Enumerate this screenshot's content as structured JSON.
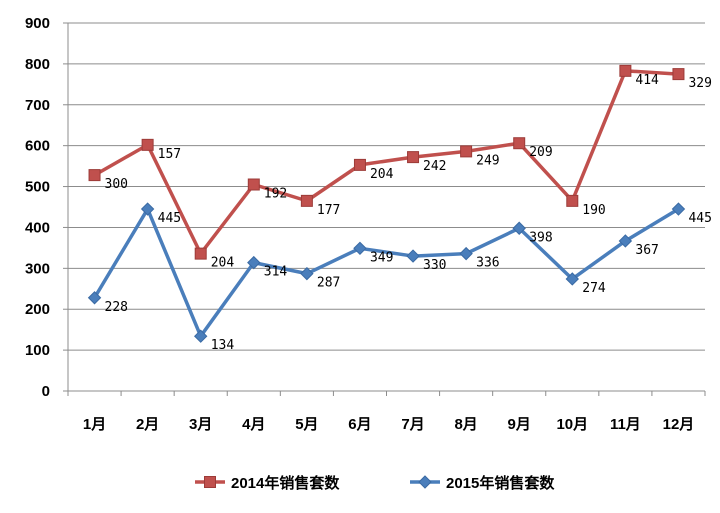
{
  "chart_data": {
    "type": "line",
    "categories": [
      "1月",
      "2月",
      "3月",
      "4月",
      "5月",
      "6月",
      "7月",
      "8月",
      "9月",
      "10月",
      "11月",
      "12月"
    ],
    "ylim": [
      0,
      900
    ],
    "yticks": [
      0,
      100,
      200,
      300,
      400,
      500,
      600,
      700,
      800,
      900
    ],
    "grid": true,
    "legend_position": "bottom",
    "series": [
      {
        "name": "2014年销售套数",
        "color": "#c0504d",
        "marker": "square",
        "values": [
          528,
          602,
          336,
          505,
          465,
          553,
          572,
          586,
          606,
          465,
          783,
          775
        ],
        "labels": [
          "300",
          "157",
          "204",
          "192",
          "177",
          "204",
          "242",
          "249",
          "209",
          "190",
          "414",
          "329"
        ]
      },
      {
        "name": "2015年销售套数",
        "color": "#4a7ebb",
        "marker": "diamond",
        "values": [
          228,
          445,
          134,
          314,
          287,
          349,
          330,
          336,
          398,
          274,
          367,
          445
        ],
        "labels": [
          "228",
          "445",
          "134",
          "314",
          "287",
          "349",
          "330",
          "336",
          "398",
          "274",
          "367",
          "445"
        ]
      }
    ]
  }
}
